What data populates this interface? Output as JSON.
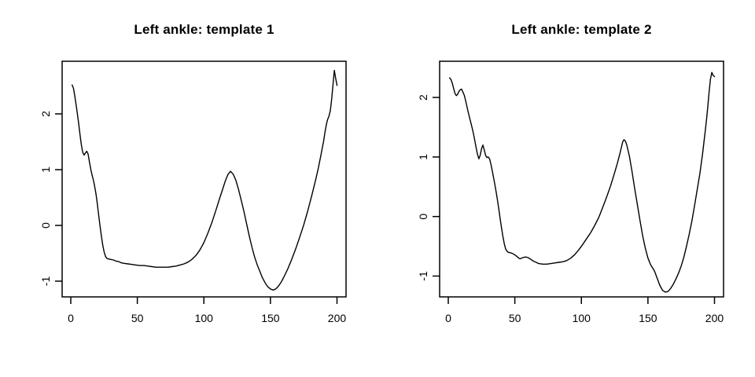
{
  "page": {
    "background": "#ffffff",
    "foreground": "#000000"
  },
  "chart_data": [
    {
      "type": "line",
      "title": "Left ankle: template 1",
      "xlabel": "",
      "ylabel": "",
      "legend": "none",
      "grid": false,
      "line_color": "#000000",
      "xticks": [
        0,
        50,
        100,
        150,
        200
      ],
      "yticks": [
        -1,
        0,
        1,
        2
      ],
      "xlim": [
        -6.5,
        206.8
      ],
      "ylim": [
        -1.282,
        2.944
      ],
      "points": [
        [
          1,
          2.52
        ],
        [
          2,
          2.46
        ],
        [
          3,
          2.32
        ],
        [
          4,
          2.16
        ],
        [
          5,
          1.99
        ],
        [
          6,
          1.81
        ],
        [
          7,
          1.62
        ],
        [
          8,
          1.44
        ],
        [
          9,
          1.31
        ],
        [
          10,
          1.26
        ],
        [
          11,
          1.3
        ],
        [
          12,
          1.33
        ],
        [
          13,
          1.28
        ],
        [
          14,
          1.14
        ],
        [
          15,
          1.01
        ],
        [
          16,
          0.9
        ],
        [
          17,
          0.81
        ],
        [
          18,
          0.69
        ],
        [
          19,
          0.55
        ],
        [
          20,
          0.38
        ],
        [
          21,
          0.18
        ],
        [
          22,
          -0.01
        ],
        [
          23,
          -0.19
        ],
        [
          24,
          -0.35
        ],
        [
          25,
          -0.47
        ],
        [
          26,
          -0.55
        ],
        [
          27,
          -0.59
        ],
        [
          28,
          -0.6
        ],
        [
          30,
          -0.61
        ],
        [
          32,
          -0.62
        ],
        [
          34,
          -0.64
        ],
        [
          36,
          -0.65
        ],
        [
          38,
          -0.67
        ],
        [
          40,
          -0.68
        ],
        [
          43,
          -0.69
        ],
        [
          46,
          -0.7
        ],
        [
          49,
          -0.71
        ],
        [
          52,
          -0.72
        ],
        [
          55,
          -0.72
        ],
        [
          58,
          -0.73
        ],
        [
          61,
          -0.74
        ],
        [
          64,
          -0.75
        ],
        [
          67,
          -0.75
        ],
        [
          70,
          -0.75
        ],
        [
          73,
          -0.75
        ],
        [
          76,
          -0.74
        ],
        [
          79,
          -0.73
        ],
        [
          82,
          -0.71
        ],
        [
          85,
          -0.69
        ],
        [
          88,
          -0.66
        ],
        [
          91,
          -0.61
        ],
        [
          94,
          -0.54
        ],
        [
          97,
          -0.44
        ],
        [
          100,
          -0.31
        ],
        [
          103,
          -0.14
        ],
        [
          106,
          0.05
        ],
        [
          109,
          0.27
        ],
        [
          112,
          0.5
        ],
        [
          114,
          0.64
        ],
        [
          116,
          0.79
        ],
        [
          118,
          0.91
        ],
        [
          120,
          0.97
        ],
        [
          122,
          0.92
        ],
        [
          124,
          0.81
        ],
        [
          126,
          0.65
        ],
        [
          128,
          0.46
        ],
        [
          130,
          0.26
        ],
        [
          132,
          0.04
        ],
        [
          134,
          -0.18
        ],
        [
          136,
          -0.38
        ],
        [
          138,
          -0.56
        ],
        [
          140,
          -0.7
        ],
        [
          142,
          -0.82
        ],
        [
          144,
          -0.94
        ],
        [
          146,
          -1.03
        ],
        [
          148,
          -1.1
        ],
        [
          150,
          -1.14
        ],
        [
          152,
          -1.16
        ],
        [
          154,
          -1.14
        ],
        [
          156,
          -1.09
        ],
        [
          158,
          -1.02
        ],
        [
          160,
          -0.93
        ],
        [
          163,
          -0.78
        ],
        [
          166,
          -0.61
        ],
        [
          169,
          -0.42
        ],
        [
          172,
          -0.21
        ],
        [
          175,
          0.01
        ],
        [
          178,
          0.26
        ],
        [
          181,
          0.53
        ],
        [
          184,
          0.82
        ],
        [
          186,
          1.03
        ],
        [
          188,
          1.27
        ],
        [
          190,
          1.52
        ],
        [
          191,
          1.68
        ],
        [
          192,
          1.81
        ],
        [
          193,
          1.9
        ],
        [
          194,
          1.96
        ],
        [
          195,
          2.06
        ],
        [
          196,
          2.26
        ],
        [
          197,
          2.52
        ],
        [
          198,
          2.78
        ],
        [
          199,
          2.64
        ],
        [
          200,
          2.51
        ]
      ]
    },
    {
      "type": "line",
      "title": "Left ankle: template 2",
      "xlabel": "",
      "ylabel": "",
      "legend": "none",
      "grid": false,
      "line_color": "#000000",
      "xticks": [
        0,
        50,
        100,
        150,
        200
      ],
      "yticks": [
        -1,
        0,
        1,
        2
      ],
      "xlim": [
        -6.5,
        206.8
      ],
      "ylim": [
        -1.35,
        2.608
      ],
      "points": [
        [
          1,
          2.33
        ],
        [
          2,
          2.3
        ],
        [
          3,
          2.24
        ],
        [
          4,
          2.15
        ],
        [
          5,
          2.07
        ],
        [
          6,
          2.03
        ],
        [
          7,
          2.05
        ],
        [
          8,
          2.1
        ],
        [
          9,
          2.13
        ],
        [
          10,
          2.14
        ],
        [
          11,
          2.09
        ],
        [
          12,
          2.04
        ],
        [
          13,
          1.95
        ],
        [
          14,
          1.85
        ],
        [
          15,
          1.75
        ],
        [
          16,
          1.66
        ],
        [
          17,
          1.57
        ],
        [
          18,
          1.48
        ],
        [
          19,
          1.38
        ],
        [
          20,
          1.27
        ],
        [
          21,
          1.15
        ],
        [
          22,
          1.04
        ],
        [
          23,
          0.97
        ],
        [
          24,
          1.03
        ],
        [
          25,
          1.14
        ],
        [
          26,
          1.2
        ],
        [
          27,
          1.12
        ],
        [
          28,
          1.03
        ],
        [
          29,
          0.99
        ],
        [
          30,
          1.0
        ],
        [
          31,
          0.97
        ],
        [
          32,
          0.88
        ],
        [
          33,
          0.77
        ],
        [
          34,
          0.66
        ],
        [
          35,
          0.54
        ],
        [
          36,
          0.41
        ],
        [
          37,
          0.27
        ],
        [
          38,
          0.12
        ],
        [
          39,
          -0.04
        ],
        [
          40,
          -0.19
        ],
        [
          41,
          -0.33
        ],
        [
          42,
          -0.45
        ],
        [
          43,
          -0.54
        ],
        [
          44,
          -0.58
        ],
        [
          45,
          -0.6
        ],
        [
          47,
          -0.61
        ],
        [
          49,
          -0.63
        ],
        [
          51,
          -0.66
        ],
        [
          53,
          -0.7
        ],
        [
          54,
          -0.71
        ],
        [
          56,
          -0.69
        ],
        [
          58,
          -0.68
        ],
        [
          60,
          -0.69
        ],
        [
          62,
          -0.72
        ],
        [
          64,
          -0.75
        ],
        [
          66,
          -0.77
        ],
        [
          68,
          -0.79
        ],
        [
          71,
          -0.8
        ],
        [
          74,
          -0.8
        ],
        [
          77,
          -0.79
        ],
        [
          80,
          -0.78
        ],
        [
          83,
          -0.77
        ],
        [
          86,
          -0.76
        ],
        [
          89,
          -0.74
        ],
        [
          92,
          -0.7
        ],
        [
          95,
          -0.64
        ],
        [
          98,
          -0.56
        ],
        [
          101,
          -0.47
        ],
        [
          104,
          -0.37
        ],
        [
          107,
          -0.27
        ],
        [
          110,
          -0.15
        ],
        [
          113,
          -0.02
        ],
        [
          116,
          0.15
        ],
        [
          119,
          0.33
        ],
        [
          122,
          0.52
        ],
        [
          125,
          0.74
        ],
        [
          127,
          0.89
        ],
        [
          129,
          1.06
        ],
        [
          131,
          1.25
        ],
        [
          132,
          1.29
        ],
        [
          133,
          1.27
        ],
        [
          134,
          1.21
        ],
        [
          136,
          1.02
        ],
        [
          138,
          0.76
        ],
        [
          140,
          0.48
        ],
        [
          142,
          0.21
        ],
        [
          144,
          -0.06
        ],
        [
          146,
          -0.32
        ],
        [
          148,
          -0.53
        ],
        [
          150,
          -0.7
        ],
        [
          152,
          -0.81
        ],
        [
          154,
          -0.88
        ],
        [
          155,
          -0.92
        ],
        [
          157,
          -1.04
        ],
        [
          159,
          -1.16
        ],
        [
          161,
          -1.24
        ],
        [
          163,
          -1.27
        ],
        [
          165,
          -1.26
        ],
        [
          167,
          -1.21
        ],
        [
          169,
          -1.14
        ],
        [
          171,
          -1.05
        ],
        [
          173,
          -0.95
        ],
        [
          175,
          -0.83
        ],
        [
          177,
          -0.68
        ],
        [
          179,
          -0.5
        ],
        [
          181,
          -0.3
        ],
        [
          183,
          -0.08
        ],
        [
          185,
          0.18
        ],
        [
          187,
          0.45
        ],
        [
          189,
          0.72
        ],
        [
          191,
          1.05
        ],
        [
          193,
          1.42
        ],
        [
          194,
          1.62
        ],
        [
          195,
          1.85
        ],
        [
          196,
          2.1
        ],
        [
          197,
          2.31
        ],
        [
          198,
          2.42
        ],
        [
          199,
          2.37
        ],
        [
          200,
          2.35
        ]
      ]
    }
  ]
}
